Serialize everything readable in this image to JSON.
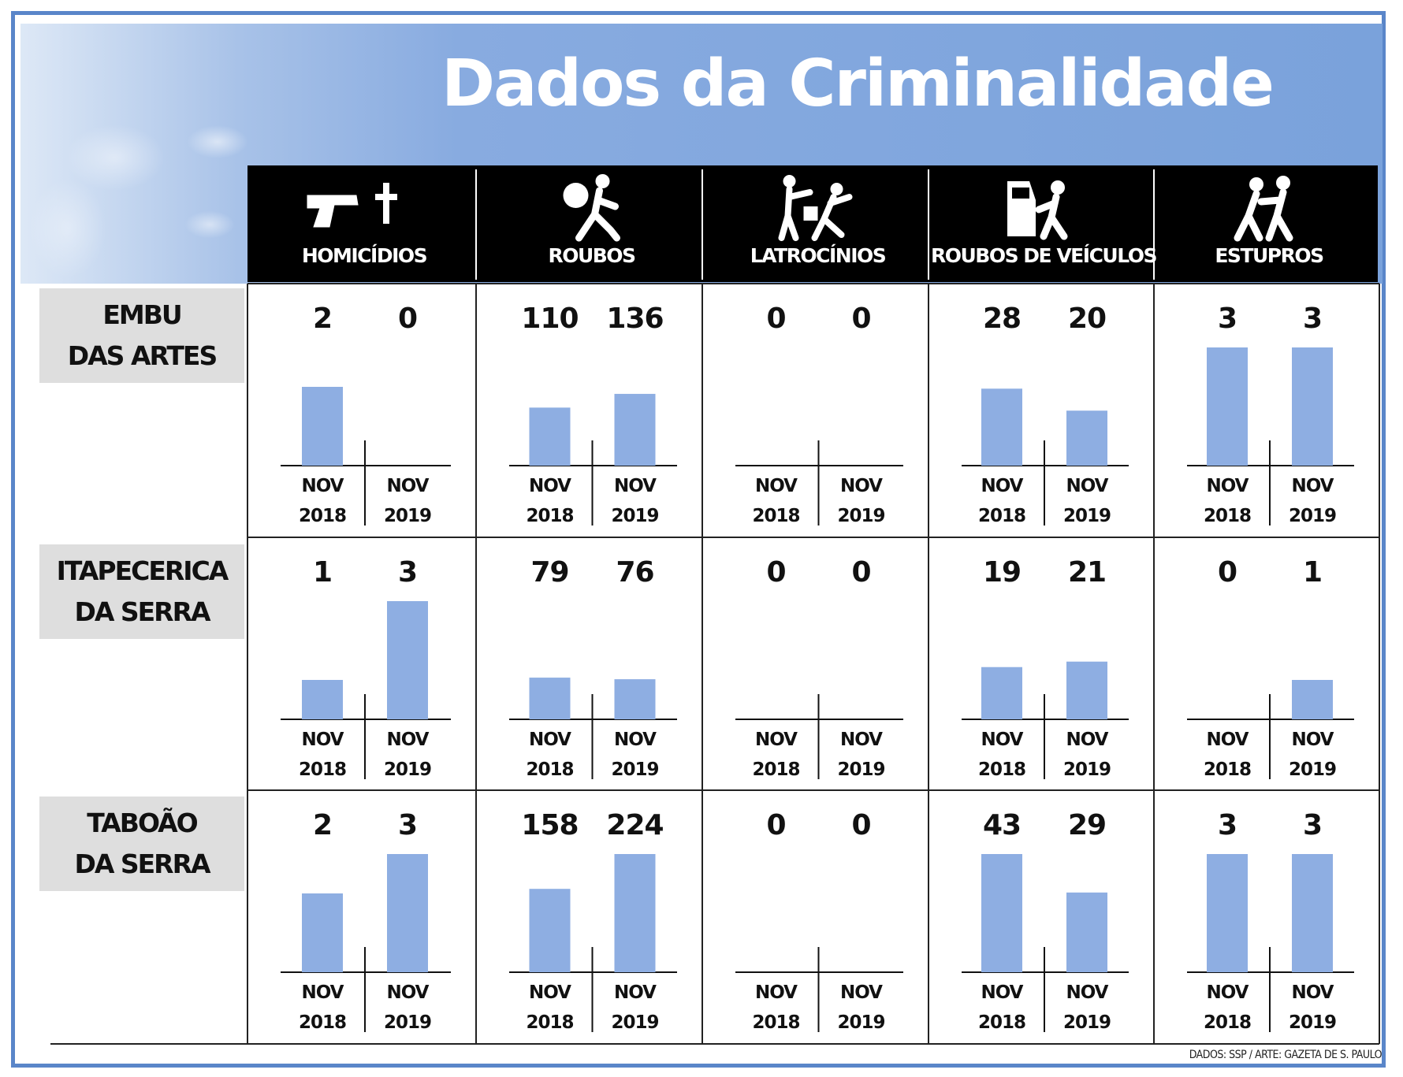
{
  "header": {
    "title": "Dados da Criminalidade",
    "source_credit": "DADOS: SSP / ARTE: GAZETA DE S. PAULO"
  },
  "colors": {
    "bar": "#8eaee2",
    "header_bg": "#000000",
    "banner": "#7aa2db",
    "city_box": "#dedede"
  },
  "chart_data": {
    "type": "bar",
    "title": "Dados da Criminalidade",
    "categories": [
      "NOV 2018",
      "NOV 2019"
    ],
    "crimes": [
      {
        "label": "HOMICÍDIOS",
        "icon": "gun-cross-icon"
      },
      {
        "label": "ROUBOS",
        "icon": "robber-running-icon"
      },
      {
        "label": "LATROCÍNIOS",
        "icon": "robbery-assault-icon"
      },
      {
        "label": "ROUBOS DE VEÍCULOS",
        "icon": "car-theft-icon"
      },
      {
        "label": "ESTUPROS",
        "icon": "assault-icon"
      }
    ],
    "cities": [
      {
        "line1": "EMBU",
        "line2": "DAS ARTES",
        "values": [
          [
            2,
            0
          ],
          [
            110,
            136
          ],
          [
            0,
            0
          ],
          [
            28,
            20
          ],
          [
            3,
            3
          ]
        ]
      },
      {
        "line1": "ITAPECERICA",
        "line2": "DA SERRA",
        "values": [
          [
            1,
            3
          ],
          [
            79,
            76
          ],
          [
            0,
            0
          ],
          [
            19,
            21
          ],
          [
            0,
            1
          ]
        ]
      },
      {
        "line1": "TABOÃO",
        "line2": "DA SERRA",
        "values": [
          [
            2,
            3
          ],
          [
            158,
            224
          ],
          [
            0,
            0
          ],
          [
            43,
            29
          ],
          [
            3,
            3
          ]
        ]
      }
    ],
    "period_labels": {
      "month": "NOV",
      "years": [
        "2018",
        "2019"
      ]
    }
  }
}
